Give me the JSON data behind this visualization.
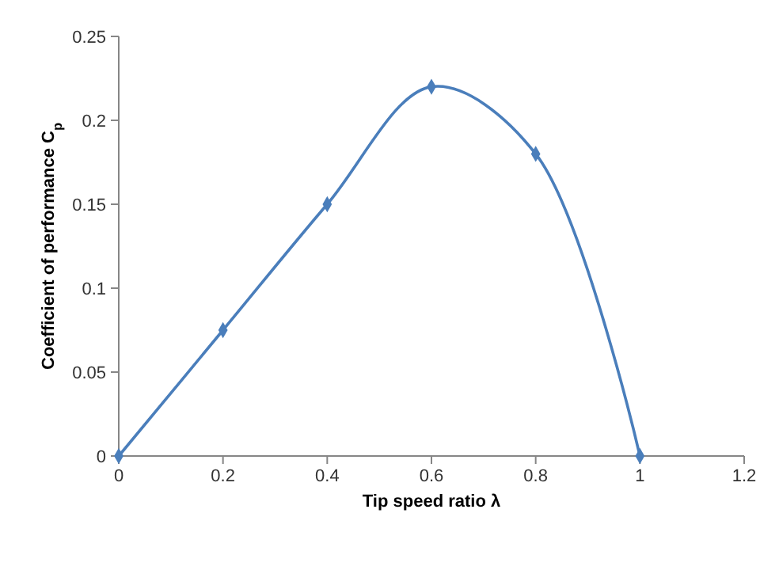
{
  "chart_data": {
    "type": "line",
    "xlabel": "Tip speed ratio λ",
    "ylabel": "Coefficient of performance C$_{p}$",
    "x": [
      0,
      0.2,
      0.4,
      0.6,
      0.8,
      1
    ],
    "series": [
      {
        "color": "#4a7ebb",
        "values": [
          0,
          0.075,
          0.15,
          0.22,
          0.18,
          0
        ]
      }
    ],
    "xlim": [
      0,
      1.2
    ],
    "xticks": [
      0,
      0.2,
      0.4,
      0.6,
      0.8,
      1,
      1.2
    ],
    "ylim": [
      0,
      0.25
    ],
    "yticks": [
      0,
      0.05,
      0.1,
      0.15,
      0.2,
      0.25
    ],
    "marker": "diamond",
    "grid": false
  }
}
